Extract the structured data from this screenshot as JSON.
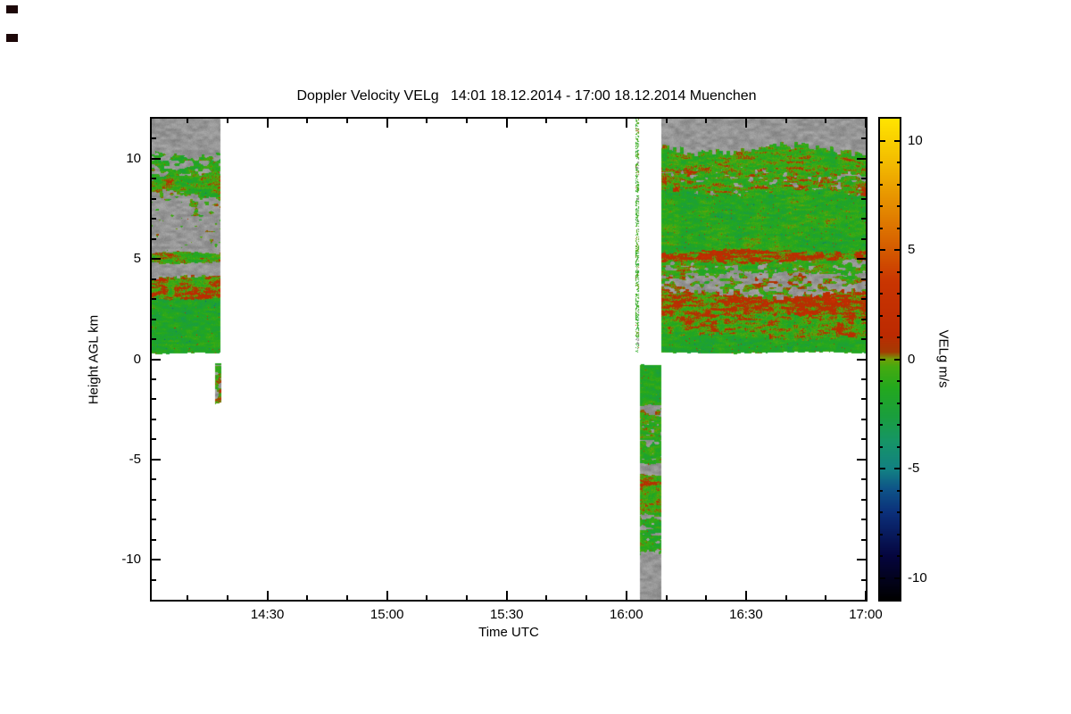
{
  "decor": {
    "artifact_color": "#1c0708"
  },
  "chart_data": {
    "type": "heatmap",
    "title": "Doppler Velocity VELg   14:01 18.12.2014 - 17:00 18.12.2014 Muenchen",
    "xlabel": "Time UTC",
    "ylabel": "Height AGL km",
    "x_range": [
      14.0167,
      17.0
    ],
    "x_ticks": [
      {
        "h": 14.5,
        "label": "14:30"
      },
      {
        "h": 15.0,
        "label": "15:00"
      },
      {
        "h": 15.5,
        "label": "15:30"
      },
      {
        "h": 16.0,
        "label": "16:00"
      },
      {
        "h": 16.5,
        "label": "16:30"
      },
      {
        "h": 17.0,
        "label": "17:00"
      }
    ],
    "x_minor_step_hours": 0.1666667,
    "y_range": [
      -12,
      12
    ],
    "y_ticks": [
      {
        "v": -10,
        "label": "-10"
      },
      {
        "v": -5,
        "label": "-5"
      },
      {
        "v": 0,
        "label": "0"
      },
      {
        "v": 5,
        "label": "5"
      },
      {
        "v": 10,
        "label": "10"
      }
    ],
    "y_minor_step": 1,
    "grid": false,
    "colors": {
      "background": "#ffffff",
      "clutter": "#969696"
    },
    "colorbar": {
      "label": "VELg m/s",
      "range": [
        -11,
        11
      ],
      "ticks": [
        {
          "v": 10,
          "label": "10"
        },
        {
          "v": 5,
          "label": "5"
        },
        {
          "v": 0,
          "label": "0"
        },
        {
          "v": -5,
          "label": "-5"
        },
        {
          "v": -10,
          "label": "-10"
        }
      ],
      "minor_step": 1,
      "stops": [
        {
          "t": 0.0,
          "c": "#000000"
        },
        {
          "t": 0.09,
          "c": "#05053e"
        },
        {
          "t": 0.18,
          "c": "#0b2f7a"
        },
        {
          "t": 0.23,
          "c": "#0e5488"
        },
        {
          "t": 0.27,
          "c": "#128083"
        },
        {
          "t": 0.33,
          "c": "#169566"
        },
        {
          "t": 0.38,
          "c": "#1a9e3f"
        },
        {
          "t": 0.44,
          "c": "#23a81e"
        },
        {
          "t": 0.485,
          "c": "#46aa10"
        },
        {
          "t": 0.5,
          "c": "#6fa008"
        },
        {
          "t": 0.515,
          "c": "#a43c03"
        },
        {
          "t": 0.55,
          "c": "#bc2a01"
        },
        {
          "t": 0.66,
          "c": "#c93501"
        },
        {
          "t": 0.73,
          "c": "#d55c00"
        },
        {
          "t": 0.82,
          "c": "#e58c00"
        },
        {
          "t": 0.91,
          "c": "#f3bc00"
        },
        {
          "t": 1.0,
          "c": "#ffe400"
        }
      ]
    },
    "segments": [
      {
        "x0": 14.0167,
        "x1": 14.305,
        "edges": [
          12,
          10.35,
          9.2,
          8.3,
          7.0,
          5.25,
          4.8,
          4.05,
          3.1,
          0.3
        ],
        "edge_amp": [
          0,
          0.3,
          0.22,
          0.25,
          0.2,
          0.1,
          0.1,
          0.15,
          0.12,
          0.06
        ],
        "bands": [
          {
            "kind": "clutter"
          },
          {
            "kind": "mix",
            "mean": -1.1,
            "spread": 1.3,
            "gray_p": 0.45
          },
          {
            "kind": "vel",
            "mean": -0.6,
            "spread": 1.5
          },
          {
            "kind": "mix",
            "mean": -0.7,
            "spread": 1.2,
            "gray_p": 0.72
          },
          {
            "kind": "mix",
            "mean": -0.6,
            "spread": 1.3,
            "gray_p": 0.88
          },
          {
            "kind": "vel",
            "mean": -0.2,
            "spread": 1.5
          },
          {
            "kind": "clutter"
          },
          {
            "kind": "vel",
            "mean": 0.15,
            "spread": 1.6
          },
          {
            "kind": "vel",
            "mean": -1.6,
            "spread": 1.1
          }
        ]
      },
      {
        "x0": 14.282,
        "x1": 14.308,
        "edges": [
          -0.2,
          -2.3
        ],
        "edge_amp": [
          0.05,
          0.1
        ],
        "bands": [
          {
            "kind": "mix",
            "mean": -0.5,
            "spread": 1.6,
            "gray_p": 0.38
          }
        ]
      },
      {
        "x0": 16.037,
        "x1": 16.052,
        "edges": [
          12,
          0.3
        ],
        "edge_amp": [
          0,
          0.05
        ],
        "bands": [
          {
            "kind": "mix",
            "mean": -0.9,
            "spread": 1.1,
            "gray_p": 0.18,
            "white_p": 0.55
          }
        ]
      },
      {
        "x0": 16.055,
        "x1": 16.147,
        "edges": [
          -0.28,
          -2.3,
          -2.9,
          -5.1,
          -5.8,
          -7.6,
          -9.7,
          -12
        ],
        "edge_amp": [
          0.04,
          0.12,
          0.12,
          0.15,
          0.12,
          0.15,
          0.2,
          0
        ],
        "bands": [
          {
            "kind": "vel",
            "mean": -1.4,
            "spread": 1.1
          },
          {
            "kind": "mix",
            "mean": -0.7,
            "spread": 1.2,
            "gray_p": 0.55
          },
          {
            "kind": "mix",
            "mean": -0.9,
            "spread": 1.3,
            "gray_p": 0.25
          },
          {
            "kind": "clutter"
          },
          {
            "kind": "vel",
            "mean": -0.4,
            "spread": 1.5
          },
          {
            "kind": "mix",
            "mean": -1.0,
            "spread": 1.2,
            "gray_p": 0.3
          },
          {
            "kind": "clutter"
          }
        ]
      },
      {
        "x0": 16.147,
        "x1": 17.0,
        "edges": [
          12,
          10.6,
          9.4,
          8.3,
          5.35,
          4.85,
          4.3,
          3.3,
          2.2,
          1.1,
          0.3
        ],
        "edge_amp": [
          0,
          0.4,
          0.3,
          0.3,
          0.15,
          0.12,
          0.15,
          0.25,
          0.2,
          0.2,
          0.06
        ],
        "bands": [
          {
            "kind": "clutter"
          },
          {
            "kind": "vel",
            "mean": -0.7,
            "spread": 1.4
          },
          {
            "kind": "mix",
            "mean": -0.3,
            "spread": 1.6,
            "gray_p": 0.22
          },
          {
            "kind": "vel",
            "mean": -1.3,
            "spread": 1.2
          },
          {
            "kind": "vel",
            "mean": 0.5,
            "spread": 1.5
          },
          {
            "kind": "mix",
            "mean": -0.9,
            "spread": 1.2,
            "gray_p": 0.3
          },
          {
            "kind": "mix",
            "mean": -0.2,
            "spread": 1.4,
            "gray_p": 0.6
          },
          {
            "kind": "vel",
            "mean": 0.45,
            "spread": 1.5
          },
          {
            "kind": "vel",
            "mean": -0.4,
            "spread": 1.6
          },
          {
            "kind": "vel",
            "mean": -1.6,
            "spread": 1.0
          }
        ]
      }
    ]
  }
}
